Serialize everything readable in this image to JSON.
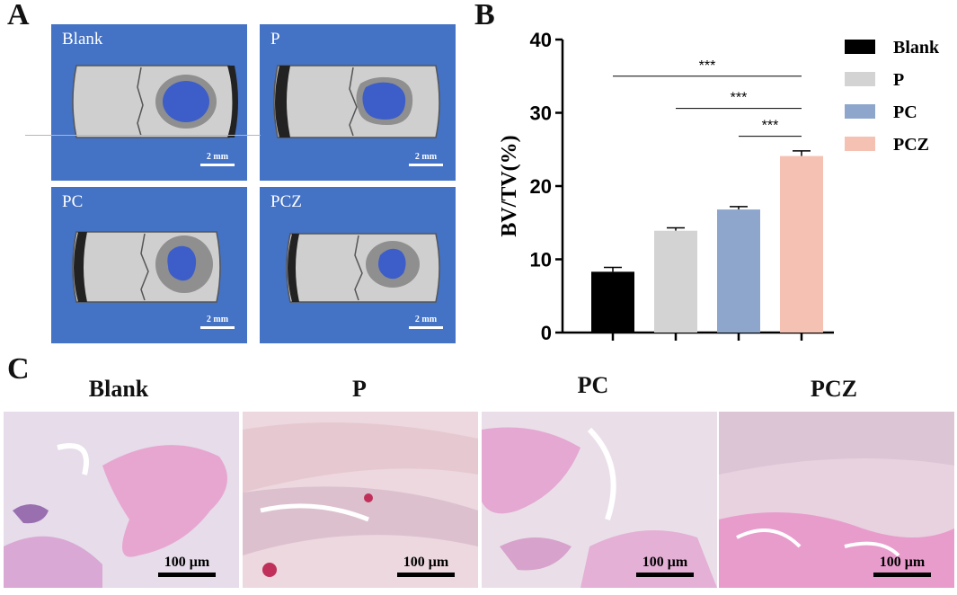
{
  "panel_letters": {
    "a": "A",
    "b": "B",
    "c": "C"
  },
  "panel_a": {
    "images": [
      {
        "label": "Blank",
        "scale": "2 mm"
      },
      {
        "label": "P",
        "scale": "2 mm"
      },
      {
        "label": "PC",
        "scale": "2 mm"
      },
      {
        "label": "PCZ",
        "scale": "2 mm"
      }
    ],
    "background_color": "#4472c4"
  },
  "chart_data": {
    "type": "bar",
    "categories": [
      "Blank",
      "P",
      "PC",
      "PCZ"
    ],
    "values": [
      8.3,
      13.9,
      16.8,
      24.1
    ],
    "errors": [
      0.6,
      0.4,
      0.4,
      0.7
    ],
    "colors": [
      "#000000",
      "#d3d3d3",
      "#8ea6cc",
      "#f5c1b3"
    ],
    "ylabel": "BV/TV(%)",
    "xlabel": "",
    "ylim": [
      0,
      40
    ],
    "yticks": [
      0,
      10,
      20,
      30,
      40
    ],
    "legend": [
      "Blank",
      "P",
      "PC",
      "PCZ"
    ],
    "legend_position": "right",
    "grid": false,
    "significance": [
      {
        "from": "Blank",
        "to": "PCZ",
        "label": "***"
      },
      {
        "from": "P",
        "to": "PCZ",
        "label": "***"
      },
      {
        "from": "PC",
        "to": "PCZ",
        "label": "***"
      }
    ]
  },
  "panel_c": {
    "titles": [
      "Blank",
      "P",
      "PC",
      "PCZ"
    ],
    "scale": "100 μm"
  }
}
